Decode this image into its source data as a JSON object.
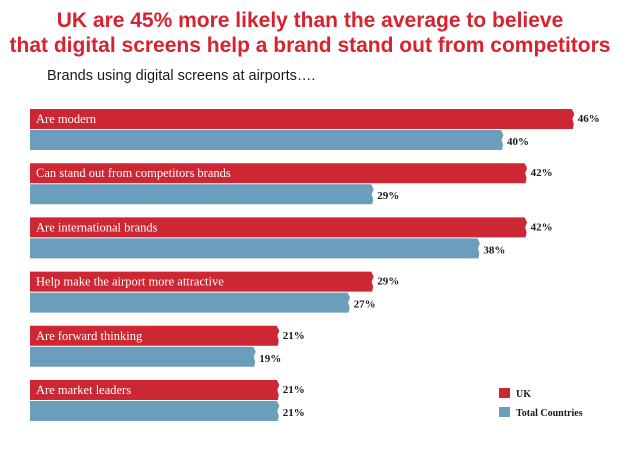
{
  "page": {
    "title_line1": "UK are 45% more likely than the average to believe",
    "title_line2": "that digital screens help a brand stand out from competitors",
    "subtitle": "Brands using digital screens at airports…."
  },
  "colors": {
    "uk": "#cc2732",
    "total": "#6b9dbd",
    "title": "#d7232f"
  },
  "chart_data": {
    "type": "bar",
    "orientation": "horizontal",
    "title": "UK are 45% more likely than the average to believe that digital screens help a brand stand out from competitors",
    "subtitle": "Brands using digital screens at airports….",
    "categories": [
      "Are modern",
      "Can stand out from competitors brands",
      "Are international brands",
      "Help make the airport more attractive",
      "Are forward thinking",
      "Are market leaders"
    ],
    "series": [
      {
        "name": "UK",
        "values": [
          46,
          42,
          42,
          29,
          21,
          21
        ],
        "labels": [
          "46%",
          "42%",
          "42%",
          "29%",
          "21%",
          "21%"
        ]
      },
      {
        "name": "Total Countries",
        "values": [
          40,
          29,
          38,
          27,
          19,
          21
        ],
        "labels": [
          "40%",
          "29%",
          "38%",
          "27%",
          "19%",
          "21%"
        ]
      }
    ],
    "value_unit": "%",
    "xlim": [
      0,
      46
    ],
    "grid": false,
    "legend_position": "bottom-right"
  }
}
